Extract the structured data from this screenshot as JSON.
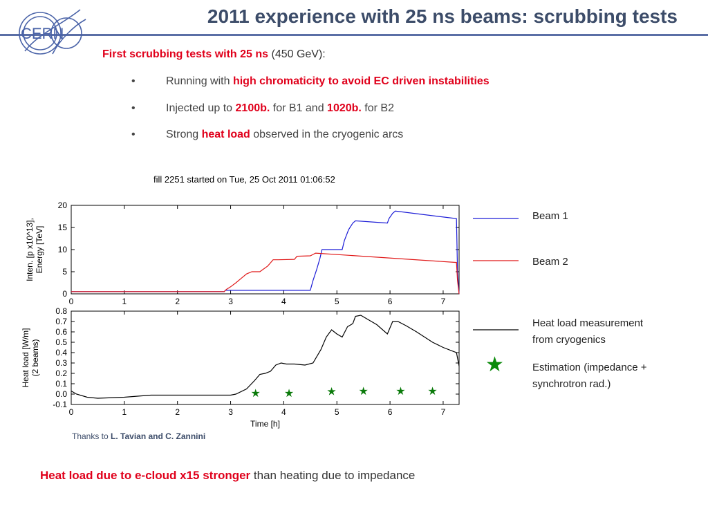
{
  "header": {
    "title": "2011 experience with 25 ns beams: scrubbing tests",
    "logo_text": "CERN"
  },
  "intro": {
    "highlight": "First scrubbing tests with 25 ns",
    "rest": " (450 GeV):"
  },
  "bullets": [
    {
      "marker": "•",
      "pre": "Running with ",
      "red": "high chromaticity to avoid EC driven instabilities",
      "post": "",
      "red2": "",
      "post2": ""
    },
    {
      "marker": "•",
      "pre": "Injected up to ",
      "red": "2100b.",
      "post": " for B1 and ",
      "red2": "1020b.",
      "post2": " for B2"
    },
    {
      "marker": "•",
      "pre": "Strong ",
      "red": "heat load",
      "post": " observed in the cryogenic arcs",
      "red2": "",
      "post2": ""
    }
  ],
  "plot_title": "fill 2251 started on Tue, 25 Oct 2011 01:06:52",
  "chart_data": [
    {
      "type": "line",
      "ylabel_lines": [
        "Inten. [p x10^13],",
        "Energy [TeV]"
      ],
      "xlim": [
        0,
        7.3
      ],
      "ylim": [
        0,
        20
      ],
      "xticks": [
        "0",
        "1",
        "2",
        "3",
        "4",
        "5",
        "6",
        "7"
      ],
      "yticks": [
        "0",
        "5",
        "10",
        "15",
        "20"
      ],
      "series": [
        {
          "name": "Beam 1",
          "color": "#1a1ad6",
          "x": [
            0,
            2.88,
            2.9,
            4.5,
            4.55,
            4.62,
            4.68,
            4.72,
            5.1,
            5.14,
            5.22,
            5.3,
            5.35,
            5.95,
            5.98,
            6.05,
            6.1,
            7.25,
            7.27,
            7.3
          ],
          "y": [
            0.5,
            0.5,
            0.8,
            0.8,
            3,
            5.5,
            8,
            10,
            10,
            12,
            14.5,
            16,
            16.5,
            16,
            17,
            18.2,
            18.7,
            17,
            5,
            0
          ]
        },
        {
          "name": "Beam 2",
          "color": "#e01818",
          "x": [
            0,
            2.88,
            2.92,
            3.0,
            3.1,
            3.2,
            3.3,
            3.4,
            3.55,
            3.7,
            3.8,
            3.9,
            4.2,
            4.25,
            4.5,
            4.6,
            7.25,
            7.27,
            7.3
          ],
          "y": [
            0.5,
            0.5,
            1,
            1.6,
            2.5,
            3.5,
            4.5,
            5,
            5,
            6.3,
            7.7,
            7.7,
            7.8,
            8.5,
            8.6,
            9.2,
            7.1,
            3,
            0
          ]
        }
      ],
      "legend": [
        "Beam 1",
        "Beam 2"
      ]
    },
    {
      "type": "line",
      "ylabel_lines": [
        "Heat load [W/m]",
        "(2 beams)"
      ],
      "xlabel": "Time [h]",
      "xlim": [
        0,
        7.3
      ],
      "ylim": [
        -0.1,
        0.8
      ],
      "xticks": [
        "0",
        "1",
        "2",
        "3",
        "4",
        "5",
        "6",
        "7"
      ],
      "yticks": [
        "0.8",
        "0.7",
        "0.6",
        "0.5",
        "0.4",
        "0.3",
        "0.2",
        "0.1",
        "0.0",
        "-0.1"
      ],
      "series": [
        {
          "name": "Heat load measurement from cryogenics",
          "color": "#000000",
          "x": [
            0,
            0.1,
            0.3,
            0.5,
            1.0,
            1.5,
            2.0,
            2.5,
            3.0,
            3.1,
            3.3,
            3.45,
            3.55,
            3.65,
            3.75,
            3.85,
            3.95,
            4.05,
            4.2,
            4.4,
            4.55,
            4.7,
            4.8,
            4.9,
            5.0,
            5.1,
            5.2,
            5.3,
            5.35,
            5.45,
            5.55,
            5.65,
            5.75,
            5.95,
            6.05,
            6.15,
            6.3,
            6.5,
            6.8,
            7.0,
            7.25,
            7.3
          ],
          "y": [
            0.03,
            0.0,
            -0.03,
            -0.04,
            -0.03,
            -0.01,
            -0.01,
            -0.01,
            -0.01,
            0.0,
            0.05,
            0.13,
            0.19,
            0.2,
            0.22,
            0.28,
            0.3,
            0.29,
            0.29,
            0.28,
            0.3,
            0.43,
            0.55,
            0.62,
            0.58,
            0.55,
            0.65,
            0.68,
            0.75,
            0.76,
            0.73,
            0.7,
            0.67,
            0.58,
            0.7,
            0.7,
            0.66,
            0.6,
            0.5,
            0.45,
            0.4,
            0.27
          ]
        },
        {
          "name": "Estimation (impedance + synchrotron rad.)",
          "color": "#0a7a0a",
          "marker": "star",
          "x": [
            3.47,
            4.1,
            4.9,
            5.5,
            6.2,
            6.8
          ],
          "y": [
            0.012,
            0.012,
            0.03,
            0.035,
            0.035,
            0.035
          ]
        }
      ],
      "legend": [
        "Heat load measurement from cryogenics",
        "Estimation (impedance + synchrotron rad.)"
      ]
    }
  ],
  "legend_text": {
    "beam1": "Beam 1",
    "beam2": "Beam 2",
    "heat_line1": "Heat load measurement",
    "heat_line2": "from cryogenics",
    "est_line1": "Estimation (impedance +",
    "est_line2": "synchrotron rad.)",
    "star_glyph": "★"
  },
  "thanks": {
    "pre": "Thanks to ",
    "names": "L. Tavian and C. Zannini"
  },
  "footer": {
    "red": "Heat load due to e-cloud x15 stronger",
    "rest": " than heating due to impedance"
  }
}
